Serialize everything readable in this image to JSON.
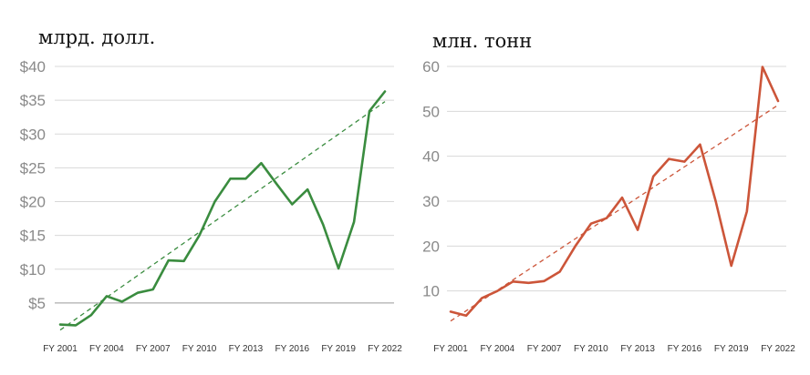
{
  "chart_data": [
    {
      "type": "line",
      "unit_label": "млрд. долл.",
      "x_tick_labels": [
        "FY 2001",
        "FY 2004",
        "FY 2007",
        "FY 2010",
        "FY 2013",
        "FY 2016",
        "FY 2019",
        "FY 2022"
      ],
      "y_tick_labels": [
        "$5",
        "$10",
        "$15",
        "$20",
        "$25",
        "$30",
        "$35",
        "$40"
      ],
      "y_ticks": [
        5,
        10,
        15,
        20,
        25,
        30,
        35,
        40
      ],
      "ylim": [
        0,
        40
      ],
      "xlim": [
        2001,
        2022
      ],
      "grid": true,
      "color": "#3a8c3f",
      "series": [
        {
          "x": [
            2001,
            2002,
            2003,
            2004,
            2005,
            2006,
            2007,
            2008,
            2009,
            2010,
            2011,
            2012,
            2013,
            2014,
            2015,
            2016,
            2017,
            2018,
            2019,
            2020,
            2021,
            2022
          ],
          "values": [
            1.8,
            1.7,
            3.2,
            6.0,
            5.2,
            6.5,
            7.0,
            11.3,
            11.2,
            15.0,
            20.0,
            23.4,
            23.4,
            25.7,
            22.6,
            19.6,
            21.8,
            16.6,
            10.1,
            17.0,
            33.4,
            36.3
          ]
        }
      ],
      "trend": {
        "x": [
          2001,
          2022
        ],
        "values": [
          1.0,
          34.8
        ],
        "style": "dashed"
      }
    },
    {
      "type": "line",
      "unit_label": "млн. тонн",
      "x_tick_labels": [
        "FY 2001",
        "FY 2004",
        "FY 2007",
        "FY 2010",
        "FY 2013",
        "FY 2016",
        "FY 2019",
        "FY 2022"
      ],
      "y_tick_labels": [
        "10",
        "20",
        "30",
        "40",
        "50",
        "60"
      ],
      "y_ticks": [
        10,
        20,
        30,
        40,
        50,
        60
      ],
      "ylim": [
        0,
        60
      ],
      "xlim": [
        2001,
        2022
      ],
      "grid": true,
      "color": "#cc5539",
      "series": [
        {
          "x": [
            2001,
            2002,
            2003,
            2004,
            2005,
            2006,
            2007,
            2008,
            2009,
            2010,
            2011,
            2012,
            2013,
            2014,
            2015,
            2016,
            2017,
            2018,
            2019,
            2020,
            2021,
            2022
          ],
          "values": [
            5.4,
            4.5,
            8.4,
            10.0,
            12.1,
            11.8,
            12.2,
            14.3,
            20.0,
            25.0,
            26.2,
            30.8,
            23.6,
            35.5,
            39.4,
            38.8,
            42.6,
            30.0,
            15.6,
            27.7,
            59.9,
            52.3
          ]
        }
      ],
      "trend": {
        "x": [
          2001,
          2022
        ],
        "values": [
          3.3,
          51.4
        ],
        "style": "dashed"
      }
    }
  ]
}
